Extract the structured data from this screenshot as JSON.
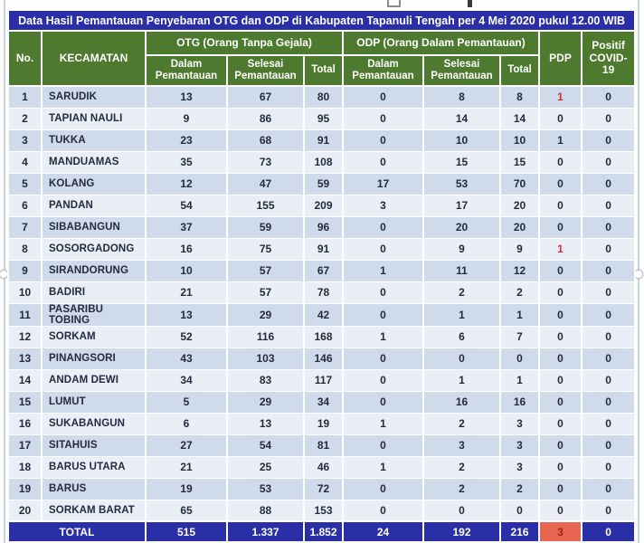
{
  "title": "Data Hasil Pemantauan Penyebaran OTG dan ODP di Kabupaten Tapanuli Tengah per 4 Mei 2020 pukul 12.00 WIB",
  "table": {
    "headers": {
      "no": "No.",
      "kecamatan": "KECAMATAN",
      "otg_group": "OTG (Orang Tanpa Gejala)",
      "odp_group": "ODP (Orang Dalam Pemantauan)",
      "dalam": "Dalam Pemantauan",
      "selesai": "Selesai Pemantauan",
      "total": "Total",
      "pdp": "PDP",
      "positif": "Positif COVID-19"
    }
  },
  "chart_data": {
    "type": "table",
    "title": "Data Hasil Pemantauan Penyebaran OTG dan ODP di Kabupaten Tapanuli Tengah per 4 Mei 2020 pukul 12.00 WIB",
    "column_groups": [
      "OTG (Orang Tanpa Gejala)",
      "ODP (Orang Dalam Pemantauan)"
    ],
    "columns": [
      "No.",
      "KECAMATAN",
      "OTG Dalam Pemantauan",
      "OTG Selesai Pemantauan",
      "OTG Total",
      "ODP Dalam Pemantauan",
      "ODP Selesai Pemantauan",
      "ODP Total",
      "PDP",
      "Positif COVID-19"
    ],
    "rows": [
      [
        "1",
        "SARUDIK",
        "13",
        "67",
        "80",
        "0",
        "8",
        "8",
        "1",
        "0"
      ],
      [
        "2",
        "TAPIAN NAULI",
        "9",
        "86",
        "95",
        "0",
        "14",
        "14",
        "0",
        "0"
      ],
      [
        "3",
        "TUKKA",
        "23",
        "68",
        "91",
        "0",
        "10",
        "10",
        "1",
        "0"
      ],
      [
        "4",
        "MANDUAMAS",
        "35",
        "73",
        "108",
        "0",
        "15",
        "15",
        "0",
        "0"
      ],
      [
        "5",
        "KOLANG",
        "12",
        "47",
        "59",
        "17",
        "53",
        "70",
        "0",
        "0"
      ],
      [
        "6",
        "PANDAN",
        "54",
        "155",
        "209",
        "3",
        "17",
        "20",
        "0",
        "0"
      ],
      [
        "7",
        "SIBABANGUN",
        "37",
        "59",
        "96",
        "0",
        "20",
        "20",
        "0",
        "0"
      ],
      [
        "8",
        "SOSORGADONG",
        "16",
        "75",
        "91",
        "0",
        "9",
        "9",
        "1",
        "0"
      ],
      [
        "9",
        "SIRANDORUNG",
        "10",
        "57",
        "67",
        "1",
        "11",
        "12",
        "0",
        "0"
      ],
      [
        "10",
        "BADIRI",
        "21",
        "57",
        "78",
        "0",
        "2",
        "2",
        "0",
        "0"
      ],
      [
        "11",
        "PASARIBU TOBING",
        "13",
        "29",
        "42",
        "0",
        "1",
        "1",
        "0",
        "0"
      ],
      [
        "12",
        "SORKAM",
        "52",
        "116",
        "168",
        "1",
        "6",
        "7",
        "0",
        "0"
      ],
      [
        "13",
        "PINANGSORI",
        "43",
        "103",
        "146",
        "0",
        "0",
        "0",
        "0",
        "0"
      ],
      [
        "14",
        "ANDAM DEWI",
        "34",
        "83",
        "117",
        "0",
        "1",
        "1",
        "0",
        "0"
      ],
      [
        "15",
        "LUMUT",
        "5",
        "29",
        "34",
        "0",
        "16",
        "16",
        "0",
        "0"
      ],
      [
        "16",
        "SUKABANGUN",
        "6",
        "13",
        "19",
        "1",
        "2",
        "3",
        "0",
        "0"
      ],
      [
        "17",
        "SITAHUIS",
        "27",
        "54",
        "81",
        "0",
        "3",
        "3",
        "0",
        "0"
      ],
      [
        "18",
        "BARUS UTARA",
        "21",
        "25",
        "46",
        "1",
        "2",
        "3",
        "0",
        "0"
      ],
      [
        "19",
        "BARUS",
        "19",
        "53",
        "72",
        "0",
        "2",
        "2",
        "0",
        "0"
      ],
      [
        "20",
        "SORKAM BARAT",
        "65",
        "88",
        "153",
        "0",
        "0",
        "0",
        "0",
        "0"
      ]
    ],
    "total_row": [
      "TOTAL",
      "515",
      "1.337",
      "1.852",
      "24",
      "192",
      "216",
      "3",
      "0"
    ],
    "red_pdp_row_numbers": [
      "1",
      "8"
    ],
    "notes": "PDP value highlighted red in rows 1 (SARUDIK) and 8 (SOSORGADONG); TOTAL PDP cell has coral background"
  },
  "colors": {
    "title_bar_blue": "#2a2fa8",
    "header_green": "#4e7a2f",
    "row_band_odd": "#cfdaea",
    "row_band_even": "#eaeff7",
    "total_row_blue": "#2a2fa8",
    "pdp_alert_background": "#e8664f",
    "alert_red_text": "#e02b33",
    "data_text": "#242b3d"
  }
}
